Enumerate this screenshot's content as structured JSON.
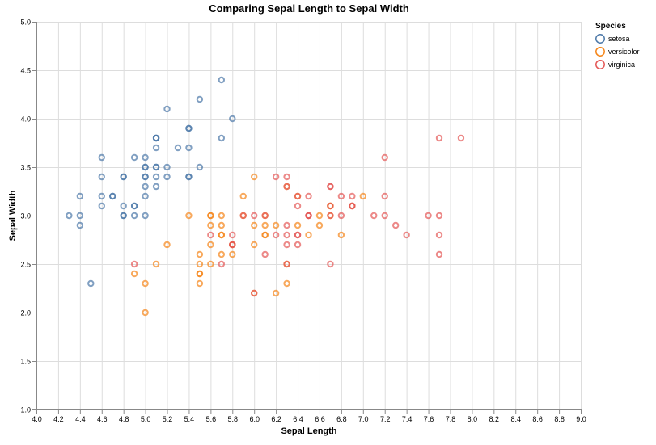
{
  "chart_data": {
    "type": "scatter",
    "title": "Comparing Sepal Length to Sepal Width",
    "xlabel": "Sepal Length",
    "ylabel": "Sepal Width",
    "xlim": [
      4.0,
      9.0
    ],
    "ylim": [
      1.0,
      5.0
    ],
    "x_ticks": [
      "4.0",
      "4.2",
      "4.4",
      "4.6",
      "4.8",
      "5.0",
      "5.2",
      "5.4",
      "5.6",
      "5.8",
      "6.0",
      "6.2",
      "6.4",
      "6.6",
      "6.8",
      "7.0",
      "7.2",
      "7.4",
      "7.6",
      "7.8",
      "8.0",
      "8.2",
      "8.4",
      "8.6",
      "8.8",
      "9.0"
    ],
    "y_ticks": [
      "1.0",
      "1.5",
      "2.0",
      "2.5",
      "3.0",
      "3.5",
      "4.0",
      "4.5",
      "5.0"
    ],
    "grid": true,
    "legend": {
      "title": "Species",
      "placement": "top-right"
    },
    "series": [
      {
        "name": "setosa",
        "color": "#4c78a8",
        "points": [
          [
            5.1,
            3.5
          ],
          [
            4.9,
            3.0
          ],
          [
            4.7,
            3.2
          ],
          [
            4.6,
            3.1
          ],
          [
            5.0,
            3.6
          ],
          [
            5.4,
            3.9
          ],
          [
            4.6,
            3.4
          ],
          [
            5.0,
            3.4
          ],
          [
            4.4,
            2.9
          ],
          [
            4.9,
            3.1
          ],
          [
            5.4,
            3.7
          ],
          [
            4.8,
            3.4
          ],
          [
            4.8,
            3.0
          ],
          [
            4.3,
            3.0
          ],
          [
            5.8,
            4.0
          ],
          [
            5.7,
            4.4
          ],
          [
            5.4,
            3.9
          ],
          [
            5.1,
            3.5
          ],
          [
            5.7,
            3.8
          ],
          [
            5.1,
            3.8
          ],
          [
            5.4,
            3.4
          ],
          [
            5.1,
            3.7
          ],
          [
            4.6,
            3.6
          ],
          [
            5.1,
            3.3
          ],
          [
            4.8,
            3.4
          ],
          [
            5.0,
            3.0
          ],
          [
            5.0,
            3.4
          ],
          [
            5.2,
            3.5
          ],
          [
            5.2,
            3.4
          ],
          [
            4.7,
            3.2
          ],
          [
            4.8,
            3.1
          ],
          [
            5.4,
            3.4
          ],
          [
            5.2,
            4.1
          ],
          [
            5.5,
            4.2
          ],
          [
            4.9,
            3.1
          ],
          [
            5.0,
            3.2
          ],
          [
            5.5,
            3.5
          ],
          [
            4.9,
            3.6
          ],
          [
            4.4,
            3.0
          ],
          [
            5.1,
            3.4
          ],
          [
            5.0,
            3.5
          ],
          [
            4.5,
            2.3
          ],
          [
            4.4,
            3.2
          ],
          [
            5.0,
            3.5
          ],
          [
            5.1,
            3.8
          ],
          [
            4.8,
            3.0
          ],
          [
            5.1,
            3.8
          ],
          [
            4.6,
            3.2
          ],
          [
            5.3,
            3.7
          ],
          [
            5.0,
            3.3
          ]
        ]
      },
      {
        "name": "versicolor",
        "color": "#f58518",
        "points": [
          [
            7.0,
            3.2
          ],
          [
            6.4,
            3.2
          ],
          [
            6.9,
            3.1
          ],
          [
            5.5,
            2.3
          ],
          [
            6.5,
            2.8
          ],
          [
            5.7,
            2.8
          ],
          [
            6.3,
            3.3
          ],
          [
            4.9,
            2.4
          ],
          [
            6.6,
            2.9
          ],
          [
            5.2,
            2.7
          ],
          [
            5.0,
            2.0
          ],
          [
            5.9,
            3.0
          ],
          [
            6.0,
            2.2
          ],
          [
            6.1,
            2.9
          ],
          [
            5.6,
            2.9
          ],
          [
            6.7,
            3.1
          ],
          [
            5.6,
            3.0
          ],
          [
            5.8,
            2.7
          ],
          [
            6.2,
            2.2
          ],
          [
            5.6,
            2.5
          ],
          [
            5.9,
            3.2
          ],
          [
            6.1,
            2.8
          ],
          [
            6.3,
            2.5
          ],
          [
            6.1,
            2.8
          ],
          [
            6.4,
            2.9
          ],
          [
            6.6,
            3.0
          ],
          [
            6.8,
            2.8
          ],
          [
            6.7,
            3.0
          ],
          [
            6.0,
            2.9
          ],
          [
            5.7,
            2.6
          ],
          [
            5.5,
            2.4
          ],
          [
            5.5,
            2.4
          ],
          [
            5.8,
            2.7
          ],
          [
            6.0,
            2.7
          ],
          [
            5.4,
            3.0
          ],
          [
            6.0,
            3.4
          ],
          [
            6.7,
            3.1
          ],
          [
            6.3,
            2.3
          ],
          [
            5.6,
            3.0
          ],
          [
            5.5,
            2.5
          ],
          [
            5.5,
            2.6
          ],
          [
            6.1,
            3.0
          ],
          [
            5.8,
            2.6
          ],
          [
            5.0,
            2.3
          ],
          [
            5.6,
            2.7
          ],
          [
            5.7,
            3.0
          ],
          [
            5.7,
            2.9
          ],
          [
            6.2,
            2.9
          ],
          [
            5.1,
            2.5
          ],
          [
            5.7,
            2.8
          ]
        ]
      },
      {
        "name": "virginica",
        "color": "#e45756",
        "points": [
          [
            6.3,
            3.3
          ],
          [
            5.8,
            2.7
          ],
          [
            7.1,
            3.0
          ],
          [
            6.3,
            2.9
          ],
          [
            6.5,
            3.0
          ],
          [
            7.6,
            3.0
          ],
          [
            4.9,
            2.5
          ],
          [
            7.3,
            2.9
          ],
          [
            6.7,
            2.5
          ],
          [
            7.2,
            3.6
          ],
          [
            6.5,
            3.2
          ],
          [
            6.4,
            2.7
          ],
          [
            6.8,
            3.0
          ],
          [
            5.7,
            2.5
          ],
          [
            5.8,
            2.8
          ],
          [
            6.4,
            3.2
          ],
          [
            6.5,
            3.0
          ],
          [
            7.7,
            3.8
          ],
          [
            7.7,
            2.6
          ],
          [
            6.0,
            2.2
          ],
          [
            6.9,
            3.2
          ],
          [
            5.6,
            2.8
          ],
          [
            7.7,
            2.8
          ],
          [
            6.3,
            2.7
          ],
          [
            6.7,
            3.3
          ],
          [
            7.2,
            3.2
          ],
          [
            6.2,
            2.8
          ],
          [
            6.1,
            3.0
          ],
          [
            6.4,
            2.8
          ],
          [
            7.2,
            3.0
          ],
          [
            7.4,
            2.8
          ],
          [
            7.9,
            3.8
          ],
          [
            6.4,
            2.8
          ],
          [
            6.3,
            2.8
          ],
          [
            6.1,
            2.6
          ],
          [
            7.7,
            3.0
          ],
          [
            6.3,
            3.4
          ],
          [
            6.4,
            3.1
          ],
          [
            6.0,
            3.0
          ],
          [
            6.9,
            3.1
          ],
          [
            6.7,
            3.1
          ],
          [
            6.9,
            3.1
          ],
          [
            5.8,
            2.7
          ],
          [
            6.8,
            3.2
          ],
          [
            6.7,
            3.3
          ],
          [
            6.7,
            3.0
          ],
          [
            6.3,
            2.5
          ],
          [
            6.5,
            3.0
          ],
          [
            6.2,
            3.4
          ],
          [
            5.9,
            3.0
          ]
        ]
      }
    ]
  }
}
